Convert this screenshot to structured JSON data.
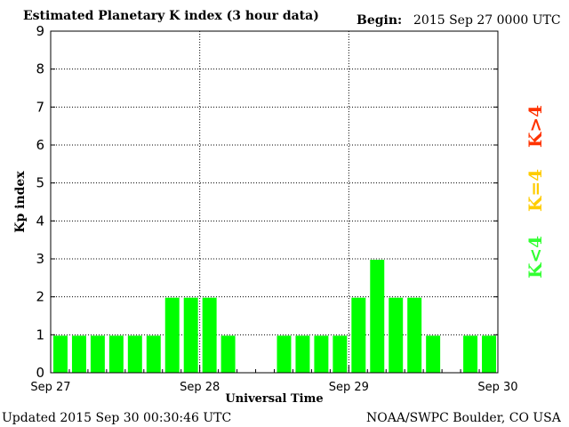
{
  "header": {
    "title": "Estimated Planetary K index (3 hour data)",
    "begin_label": "Begin:",
    "begin_value": "2015 Sep 27 0000 UTC"
  },
  "footer": {
    "updated": "Updated 2015 Sep 30 00:30:46 UTC",
    "source": "NOAA/SWPC Boulder, CO USA"
  },
  "legend": [
    {
      "label": "K<4",
      "color": "#33ff33"
    },
    {
      "label": "K=4",
      "color": "#ffcc00"
    },
    {
      "label": "K>4",
      "color": "#ff3300"
    }
  ],
  "chart_data": {
    "type": "bar",
    "title": "Estimated Planetary K index (3 hour data)",
    "xlabel": "Universal Time",
    "ylabel": "Kp index",
    "ylim": [
      0,
      9
    ],
    "yticks": [
      "0",
      "1",
      "2",
      "3",
      "4",
      "5",
      "6",
      "7",
      "8",
      "9"
    ],
    "xticks": [
      "Sep 27",
      "Sep 28",
      "Sep 29",
      "Sep 30"
    ],
    "grid": true,
    "bar_color": "#00ff00",
    "bins_per_day": 8,
    "values": [
      1,
      1,
      1,
      1,
      1,
      1,
      2,
      2,
      2,
      1,
      null,
      null,
      1,
      1,
      1,
      1,
      2,
      3,
      2,
      2,
      1,
      null,
      1,
      1
    ]
  }
}
